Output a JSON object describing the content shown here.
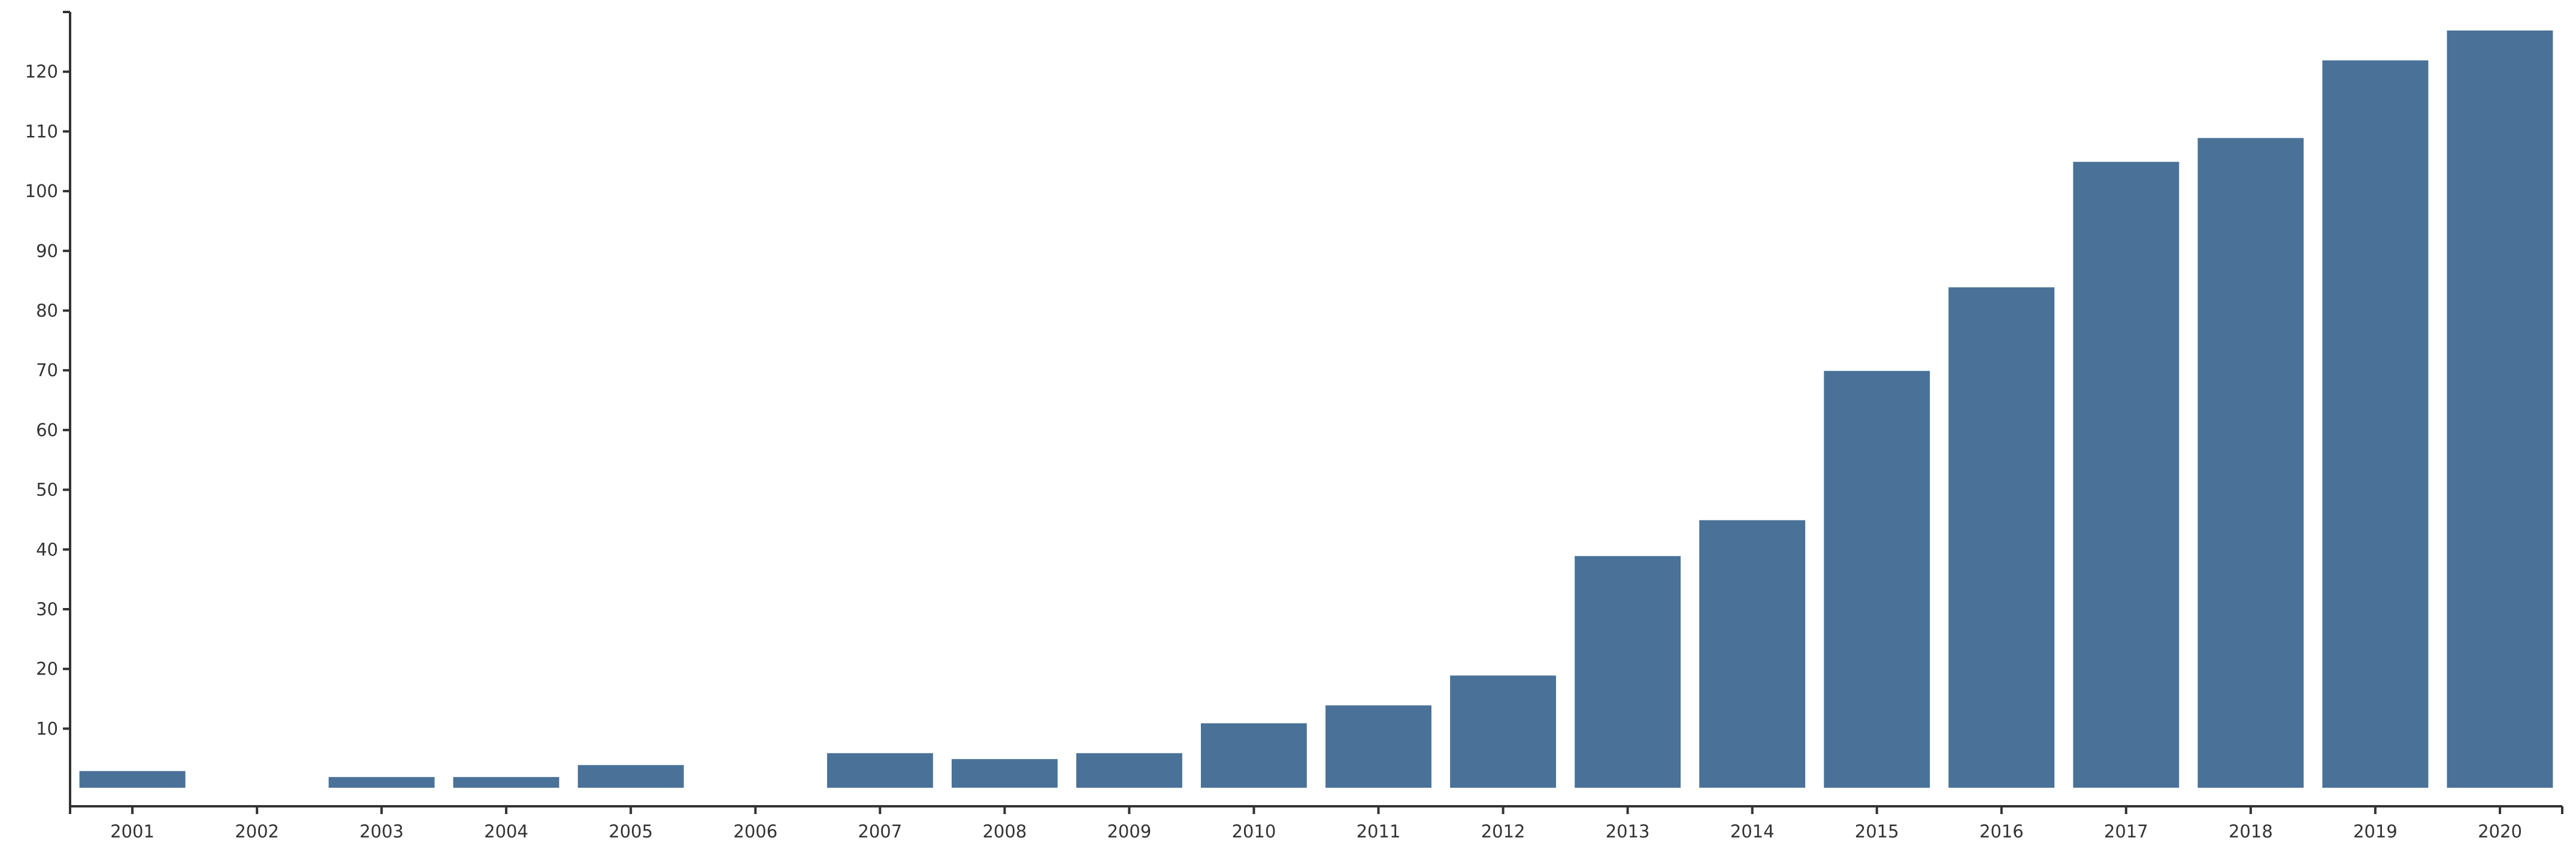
{
  "chart_data": {
    "type": "bar",
    "title": "",
    "xlabel": "",
    "ylabel": "",
    "categories": [
      "2001",
      "2002",
      "2003",
      "2004",
      "2005",
      "2006",
      "2007",
      "2008",
      "2009",
      "2010",
      "2011",
      "2012",
      "2013",
      "2014",
      "2015",
      "2016",
      "2017",
      "2018",
      "2019",
      "2020"
    ],
    "values": [
      3,
      0,
      2,
      2,
      4,
      0,
      6,
      5,
      6,
      11,
      14,
      19,
      39,
      45,
      70,
      84,
      105,
      109,
      122,
      127
    ],
    "yticks": [
      10,
      20,
      30,
      40,
      50,
      60,
      70,
      80,
      90,
      100,
      110,
      120
    ],
    "ylim": [
      -3,
      130
    ],
    "grid": false,
    "legend": "none",
    "bar_color": "#4a7298"
  }
}
